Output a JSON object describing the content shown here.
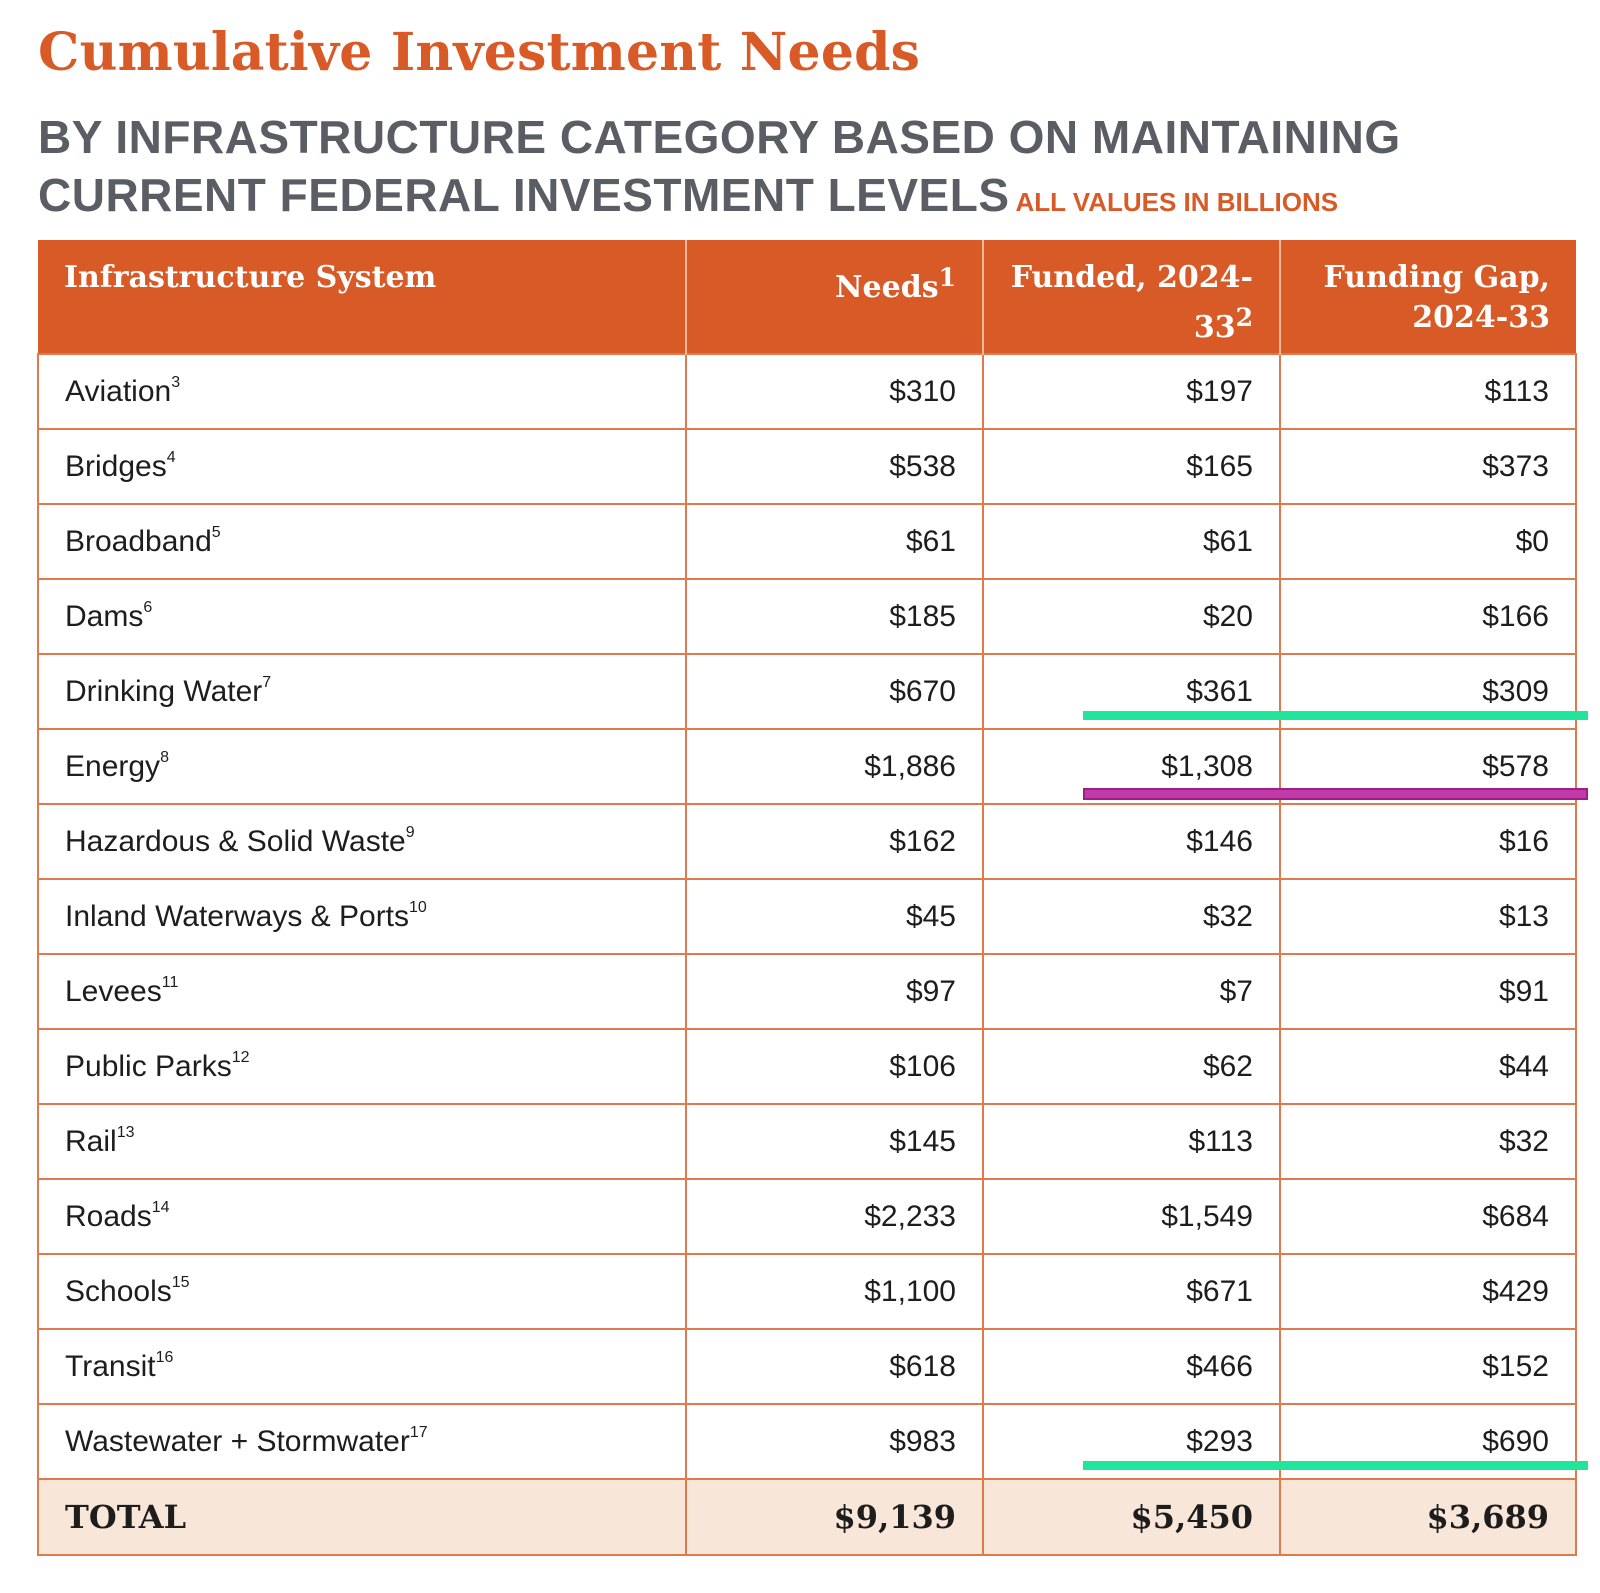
{
  "title": "Cumulative Investment Needs",
  "subtitle": {
    "line1": "BY INFRASTRUCTURE CATEGORY BASED ON MAINTAINING",
    "line2": "CURRENT FEDERAL INVESTMENT LEVELS",
    "units": "ALL VALUES IN BILLIONS"
  },
  "chart_data": {
    "type": "table",
    "title": "Cumulative Investment Needs",
    "subtitle": "BY INFRASTRUCTURE CATEGORY BASED ON MAINTAINING CURRENT FEDERAL INVESTMENT LEVELS",
    "units": "ALL VALUES IN BILLIONS",
    "columns": [
      {
        "label": "Infrastructure System",
        "sup": ""
      },
      {
        "label": "Needs",
        "sup": "1"
      },
      {
        "label": "Funded, 2024-33",
        "sup": "2"
      },
      {
        "label": "Funding Gap, 2024-33",
        "sup": ""
      }
    ],
    "rows": [
      {
        "system": "Aviation",
        "sup": "3",
        "needs": "$310",
        "funded": "$197",
        "gap": "$113"
      },
      {
        "system": "Bridges",
        "sup": "4",
        "needs": "$538",
        "funded": "$165",
        "gap": "$373"
      },
      {
        "system": "Broadband",
        "sup": "5",
        "needs": "$61",
        "funded": "$61",
        "gap": "$0"
      },
      {
        "system": "Dams",
        "sup": "6",
        "needs": "$185",
        "funded": "$20",
        "gap": "$166"
      },
      {
        "system": "Drinking Water",
        "sup": "7",
        "needs": "$670",
        "funded": "$361",
        "gap": "$309"
      },
      {
        "system": "Energy",
        "sup": "8",
        "needs": "$1,886",
        "funded": "$1,308",
        "gap": "$578"
      },
      {
        "system": "Hazardous & Solid Waste",
        "sup": "9",
        "needs": "$162",
        "funded": "$146",
        "gap": "$16"
      },
      {
        "system": "Inland Waterways & Ports",
        "sup": "10",
        "needs": "$45",
        "funded": "$32",
        "gap": "$13"
      },
      {
        "system": "Levees",
        "sup": "11",
        "needs": "$97",
        "funded": "$7",
        "gap": "$91"
      },
      {
        "system": "Public Parks",
        "sup": "12",
        "needs": "$106",
        "funded": "$62",
        "gap": "$44"
      },
      {
        "system": "Rail",
        "sup": "13",
        "needs": "$145",
        "funded": "$113",
        "gap": "$32"
      },
      {
        "system": "Roads",
        "sup": "14",
        "needs": "$2,233",
        "funded": "$1,549",
        "gap": "$684"
      },
      {
        "system": "Schools",
        "sup": "15",
        "needs": "$1,100",
        "funded": "$671",
        "gap": "$429"
      },
      {
        "system": "Transit",
        "sup": "16",
        "needs": "$618",
        "funded": "$466",
        "gap": "$152"
      },
      {
        "system": "Wastewater + Stormwater",
        "sup": "17",
        "needs": "$983",
        "funded": "$293",
        "gap": "$690"
      }
    ],
    "total": {
      "label": "TOTAL",
      "needs": "$9,139",
      "funded": "$5,450",
      "gap": "$3,689"
    },
    "annotations": [
      {
        "type": "underline",
        "color": "#1fe69a",
        "row": "Drinking Water",
        "columns": [
          "funded",
          "gap"
        ]
      },
      {
        "type": "highlight",
        "color": "#c13aa8",
        "row": "Energy",
        "columns": [
          "funded",
          "gap"
        ]
      },
      {
        "type": "underline",
        "color": "#1fe69a",
        "row": "Wastewater + Stormwater",
        "columns": [
          "funded",
          "gap"
        ]
      }
    ]
  }
}
